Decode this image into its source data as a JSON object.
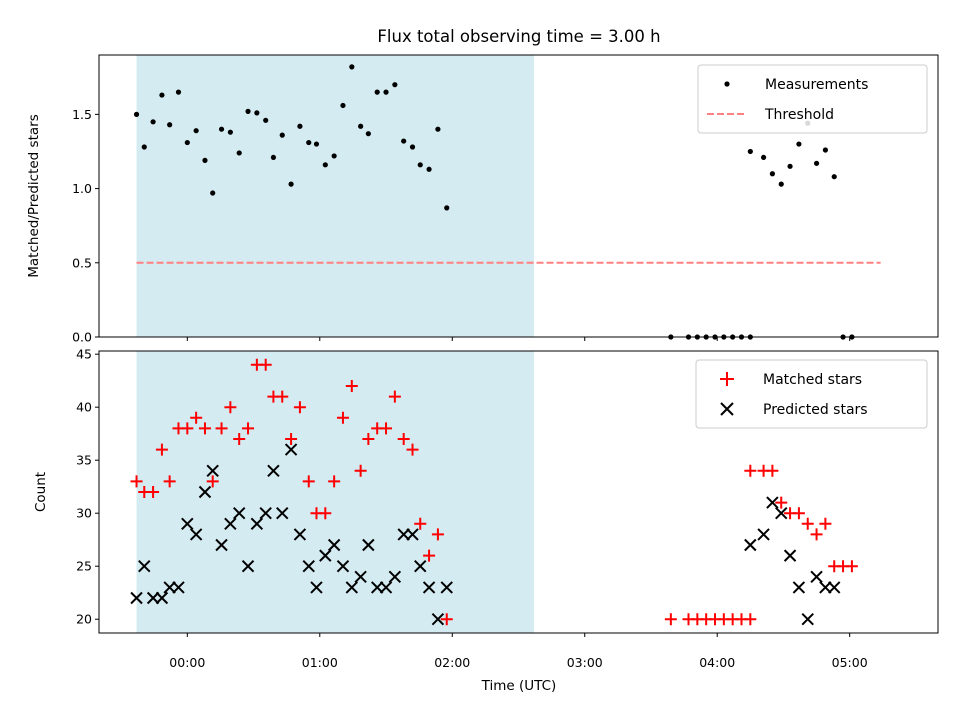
{
  "chart_data": {
    "type": "scatter",
    "title": "Flux total observing time = 3.00 h",
    "xlabel": "Time (UTC)",
    "x_unit": "minutes since 00:00 UTC",
    "x_range": [
      -40,
      340
    ],
    "x_ticks": [
      {
        "value": 0,
        "label": "00:00"
      },
      {
        "value": 60,
        "label": "01:00"
      },
      {
        "value": 120,
        "label": "02:00"
      },
      {
        "value": 180,
        "label": "03:00"
      },
      {
        "value": 240,
        "label": "04:00"
      },
      {
        "value": 300,
        "label": "05:00"
      }
    ],
    "shaded_interval": [
      -23,
      157
    ],
    "shade_color": "#d4ebf2",
    "panels": [
      {
        "name": "ratio",
        "ylabel": "Matched/Predicted stars",
        "ylim": [
          0,
          1.9
        ],
        "y_ticks": [
          0.0,
          0.5,
          1.0,
          1.5
        ],
        "y_tick_labels": [
          "0.0",
          "0.5",
          "1.0",
          "1.5"
        ],
        "legend_position": "top-right",
        "series": [
          {
            "name": "Measurements",
            "marker": "dot",
            "color": "#000000",
            "points": [
              [
                -23,
                1.5
              ],
              [
                -19.5,
                1.28
              ],
              [
                -15.5,
                1.45
              ],
              [
                -11.5,
                1.63
              ],
              [
                -8,
                1.43
              ],
              [
                -4,
                1.65
              ],
              [
                0,
                1.31
              ],
              [
                4,
                1.39
              ],
              [
                8,
                1.19
              ],
              [
                11.5,
                0.97
              ],
              [
                15.5,
                1.4
              ],
              [
                19.5,
                1.38
              ],
              [
                23.5,
                1.24
              ],
              [
                27.5,
                1.52
              ],
              [
                31.5,
                1.51
              ],
              [
                35.5,
                1.46
              ],
              [
                39,
                1.21
              ],
              [
                43,
                1.36
              ],
              [
                47,
                1.03
              ],
              [
                51,
                1.42
              ],
              [
                55,
                1.31
              ],
              [
                58.5,
                1.3
              ],
              [
                62.5,
                1.16
              ],
              [
                66.5,
                1.22
              ],
              [
                70.5,
                1.56
              ],
              [
                74.5,
                1.82
              ],
              [
                78.5,
                1.42
              ],
              [
                82,
                1.37
              ],
              [
                86,
                1.65
              ],
              [
                90,
                1.65
              ],
              [
                94,
                1.7
              ],
              [
                98,
                1.32
              ],
              [
                102,
                1.28
              ],
              [
                105.5,
                1.16
              ],
              [
                109.5,
                1.13
              ],
              [
                113.5,
                1.4
              ],
              [
                117.5,
                0.87
              ],
              [
                219,
                0
              ],
              [
                227,
                0
              ],
              [
                231,
                0
              ],
              [
                235,
                0
              ],
              [
                239,
                0
              ],
              [
                243,
                0
              ],
              [
                247,
                0
              ],
              [
                251,
                0
              ],
              [
                255,
                0
              ],
              [
                255,
                1.25
              ],
              [
                261,
                1.21
              ],
              [
                265,
                1.1
              ],
              [
                269,
                1.03
              ],
              [
                273,
                1.15
              ],
              [
                277,
                1.3
              ],
              [
                281,
                1.44
              ],
              [
                285,
                1.17
              ],
              [
                289,
                1.26
              ],
              [
                293,
                1.08
              ],
              [
                297,
                0
              ],
              [
                301,
                0
              ]
            ]
          },
          {
            "name": "Threshold",
            "marker": "dashed-line",
            "color": "#ff8080",
            "points": [
              [
                -23,
                0.5
              ],
              [
                314,
                0.5
              ]
            ]
          }
        ]
      },
      {
        "name": "count",
        "ylabel": "Count",
        "ylim": [
          18.7,
          45.3
        ],
        "y_ticks": [
          20,
          25,
          30,
          35,
          40,
          45
        ],
        "y_tick_labels": [
          "20",
          "25",
          "30",
          "35",
          "40",
          "45"
        ],
        "legend_position": "top-right",
        "series": [
          {
            "name": "Matched stars",
            "marker": "plus",
            "color": "#ff0000",
            "points": [
              [
                -23,
                33
              ],
              [
                -19.5,
                32
              ],
              [
                -15.5,
                32
              ],
              [
                -11.5,
                36
              ],
              [
                -8,
                33
              ],
              [
                -4,
                38
              ],
              [
                0,
                38
              ],
              [
                4,
                39
              ],
              [
                8,
                38
              ],
              [
                11.5,
                33
              ],
              [
                15.5,
                38
              ],
              [
                19.5,
                40
              ],
              [
                23.5,
                37
              ],
              [
                27.5,
                38
              ],
              [
                31.5,
                44
              ],
              [
                35.5,
                44
              ],
              [
                39,
                41
              ],
              [
                43,
                41
              ],
              [
                47,
                37
              ],
              [
                51,
                40
              ],
              [
                55,
                33
              ],
              [
                58.5,
                30
              ],
              [
                62.5,
                30
              ],
              [
                66.5,
                33
              ],
              [
                70.5,
                39
              ],
              [
                74.5,
                42
              ],
              [
                78.5,
                34
              ],
              [
                82,
                37
              ],
              [
                86,
                38
              ],
              [
                90,
                38
              ],
              [
                94,
                41
              ],
              [
                98,
                37
              ],
              [
                102,
                36
              ],
              [
                105.5,
                29
              ],
              [
                109.5,
                26
              ],
              [
                113.5,
                28
              ],
              [
                117.5,
                20
              ],
              [
                219,
                20
              ],
              [
                227,
                20
              ],
              [
                231,
                20
              ],
              [
                235,
                20
              ],
              [
                239,
                20
              ],
              [
                243,
                20
              ],
              [
                247,
                20
              ],
              [
                251,
                20
              ],
              [
                255,
                20
              ],
              [
                255,
                34
              ],
              [
                261,
                34
              ],
              [
                265,
                34
              ],
              [
                269,
                31
              ],
              [
                273,
                30
              ],
              [
                277,
                30
              ],
              [
                281,
                29
              ],
              [
                285,
                28
              ],
              [
                289,
                29
              ],
              [
                293,
                25
              ],
              [
                297,
                25
              ],
              [
                301,
                25
              ]
            ]
          },
          {
            "name": "Predicted stars",
            "marker": "x",
            "color": "#000000",
            "points": [
              [
                -23,
                22
              ],
              [
                -19.5,
                25
              ],
              [
                -15.5,
                22
              ],
              [
                -11.5,
                22
              ],
              [
                -8,
                23
              ],
              [
                -4,
                23
              ],
              [
                0,
                29
              ],
              [
                4,
                28
              ],
              [
                8,
                32
              ],
              [
                11.5,
                34
              ],
              [
                15.5,
                27
              ],
              [
                19.5,
                29
              ],
              [
                23.5,
                30
              ],
              [
                27.5,
                25
              ],
              [
                31.5,
                29
              ],
              [
                35.5,
                30
              ],
              [
                39,
                34
              ],
              [
                43,
                30
              ],
              [
                47,
                36
              ],
              [
                51,
                28
              ],
              [
                55,
                25
              ],
              [
                58.5,
                23
              ],
              [
                62.5,
                26
              ],
              [
                66.5,
                27
              ],
              [
                70.5,
                25
              ],
              [
                74.5,
                23
              ],
              [
                78.5,
                24
              ],
              [
                82,
                27
              ],
              [
                86,
                23
              ],
              [
                90,
                23
              ],
              [
                94,
                24
              ],
              [
                98,
                28
              ],
              [
                102,
                28
              ],
              [
                105.5,
                25
              ],
              [
                109.5,
                23
              ],
              [
                113.5,
                20
              ],
              [
                117.5,
                23
              ],
              [
                255,
                27
              ],
              [
                261,
                28
              ],
              [
                265,
                31
              ],
              [
                269,
                30
              ],
              [
                273,
                26
              ],
              [
                277,
                23
              ],
              [
                281,
                20
              ],
              [
                285,
                24
              ],
              [
                289,
                23
              ],
              [
                293,
                23
              ]
            ]
          }
        ]
      }
    ]
  }
}
